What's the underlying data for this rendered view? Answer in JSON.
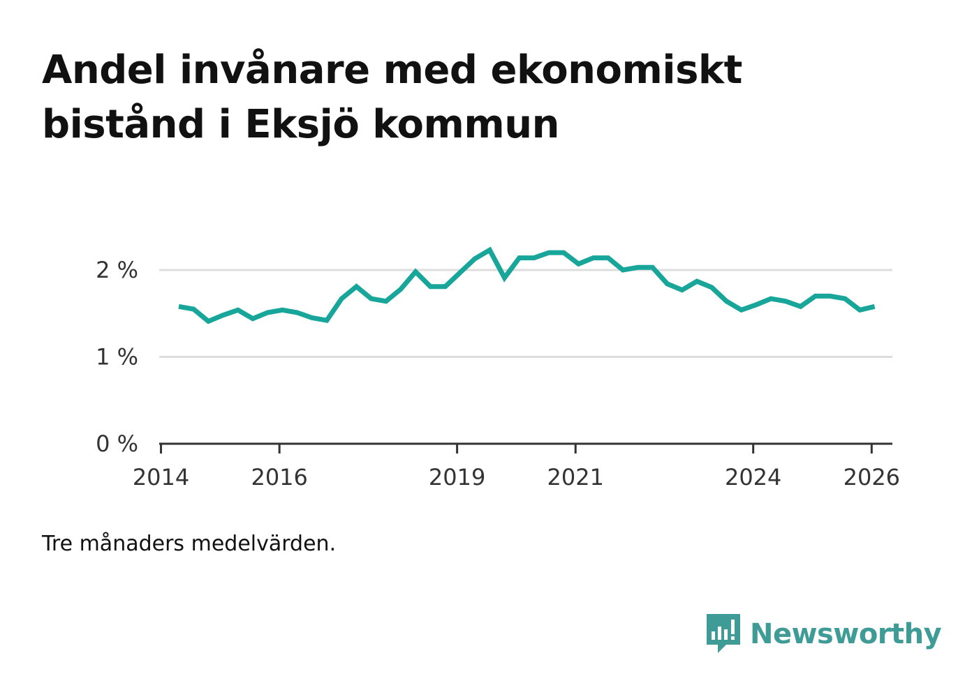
{
  "title": "Andel invånare med ekonomiskt bistånd i Eksjö kommun",
  "note": "Tre månaders medelvärden.",
  "brand": {
    "name": "Newsworthy",
    "color": "#3e9b96",
    "icon": "newsworthy-bars-icon"
  },
  "colors": {
    "line": "#18a69a",
    "grid": "#dddddd",
    "axis": "#333333"
  },
  "chart_data": {
    "type": "line",
    "title": "Andel invånare med ekonomiskt bistånd i Eksjö kommun",
    "xlabel": "",
    "ylabel": "",
    "ylim": [
      0,
      2.4
    ],
    "xlim": [
      2013.97,
      2026.35
    ],
    "grid": true,
    "y_ticks": [
      {
        "value": 0,
        "label": "0 %"
      },
      {
        "value": 1,
        "label": "1 %"
      },
      {
        "value": 2,
        "label": "2 %"
      }
    ],
    "x_ticks": [
      {
        "value": 2014,
        "label": "2014"
      },
      {
        "value": 2016,
        "label": "2016"
      },
      {
        "value": 2019,
        "label": "2019"
      },
      {
        "value": 2021,
        "label": "2021"
      },
      {
        "value": 2024,
        "label": "2024"
      },
      {
        "value": 2026,
        "label": "2026"
      }
    ],
    "series": [
      {
        "name": "Andel invånare med ekonomiskt bistånd",
        "x": [
          2014.3,
          2014.55,
          2014.8,
          2015.05,
          2015.3,
          2015.55,
          2015.8,
          2016.05,
          2016.3,
          2016.55,
          2016.8,
          2017.05,
          2017.3,
          2017.55,
          2017.8,
          2018.05,
          2018.3,
          2018.55,
          2018.8,
          2019.05,
          2019.3,
          2019.55,
          2019.8,
          2020.05,
          2020.3,
          2020.55,
          2020.8,
          2021.05,
          2021.3,
          2021.55,
          2021.8,
          2022.05,
          2022.3,
          2022.55,
          2022.8,
          2023.05,
          2023.3,
          2023.55,
          2023.8,
          2024.05,
          2024.3,
          2024.55,
          2024.8,
          2025.05,
          2025.3,
          2025.55,
          2025.8,
          2026.05
        ],
        "values": [
          1.58,
          1.55,
          1.41,
          1.48,
          1.54,
          1.44,
          1.51,
          1.54,
          1.51,
          1.45,
          1.42,
          1.67,
          1.81,
          1.67,
          1.64,
          1.78,
          1.98,
          1.81,
          1.81,
          1.97,
          2.13,
          2.23,
          1.91,
          2.14,
          2.14,
          2.2,
          2.2,
          2.07,
          2.14,
          2.14,
          2.0,
          2.03,
          2.03,
          1.84,
          1.77,
          1.87,
          1.8,
          1.64,
          1.54,
          1.6,
          1.67,
          1.64,
          1.58,
          1.7,
          1.7,
          1.67,
          1.54,
          1.58
        ]
      }
    ]
  }
}
